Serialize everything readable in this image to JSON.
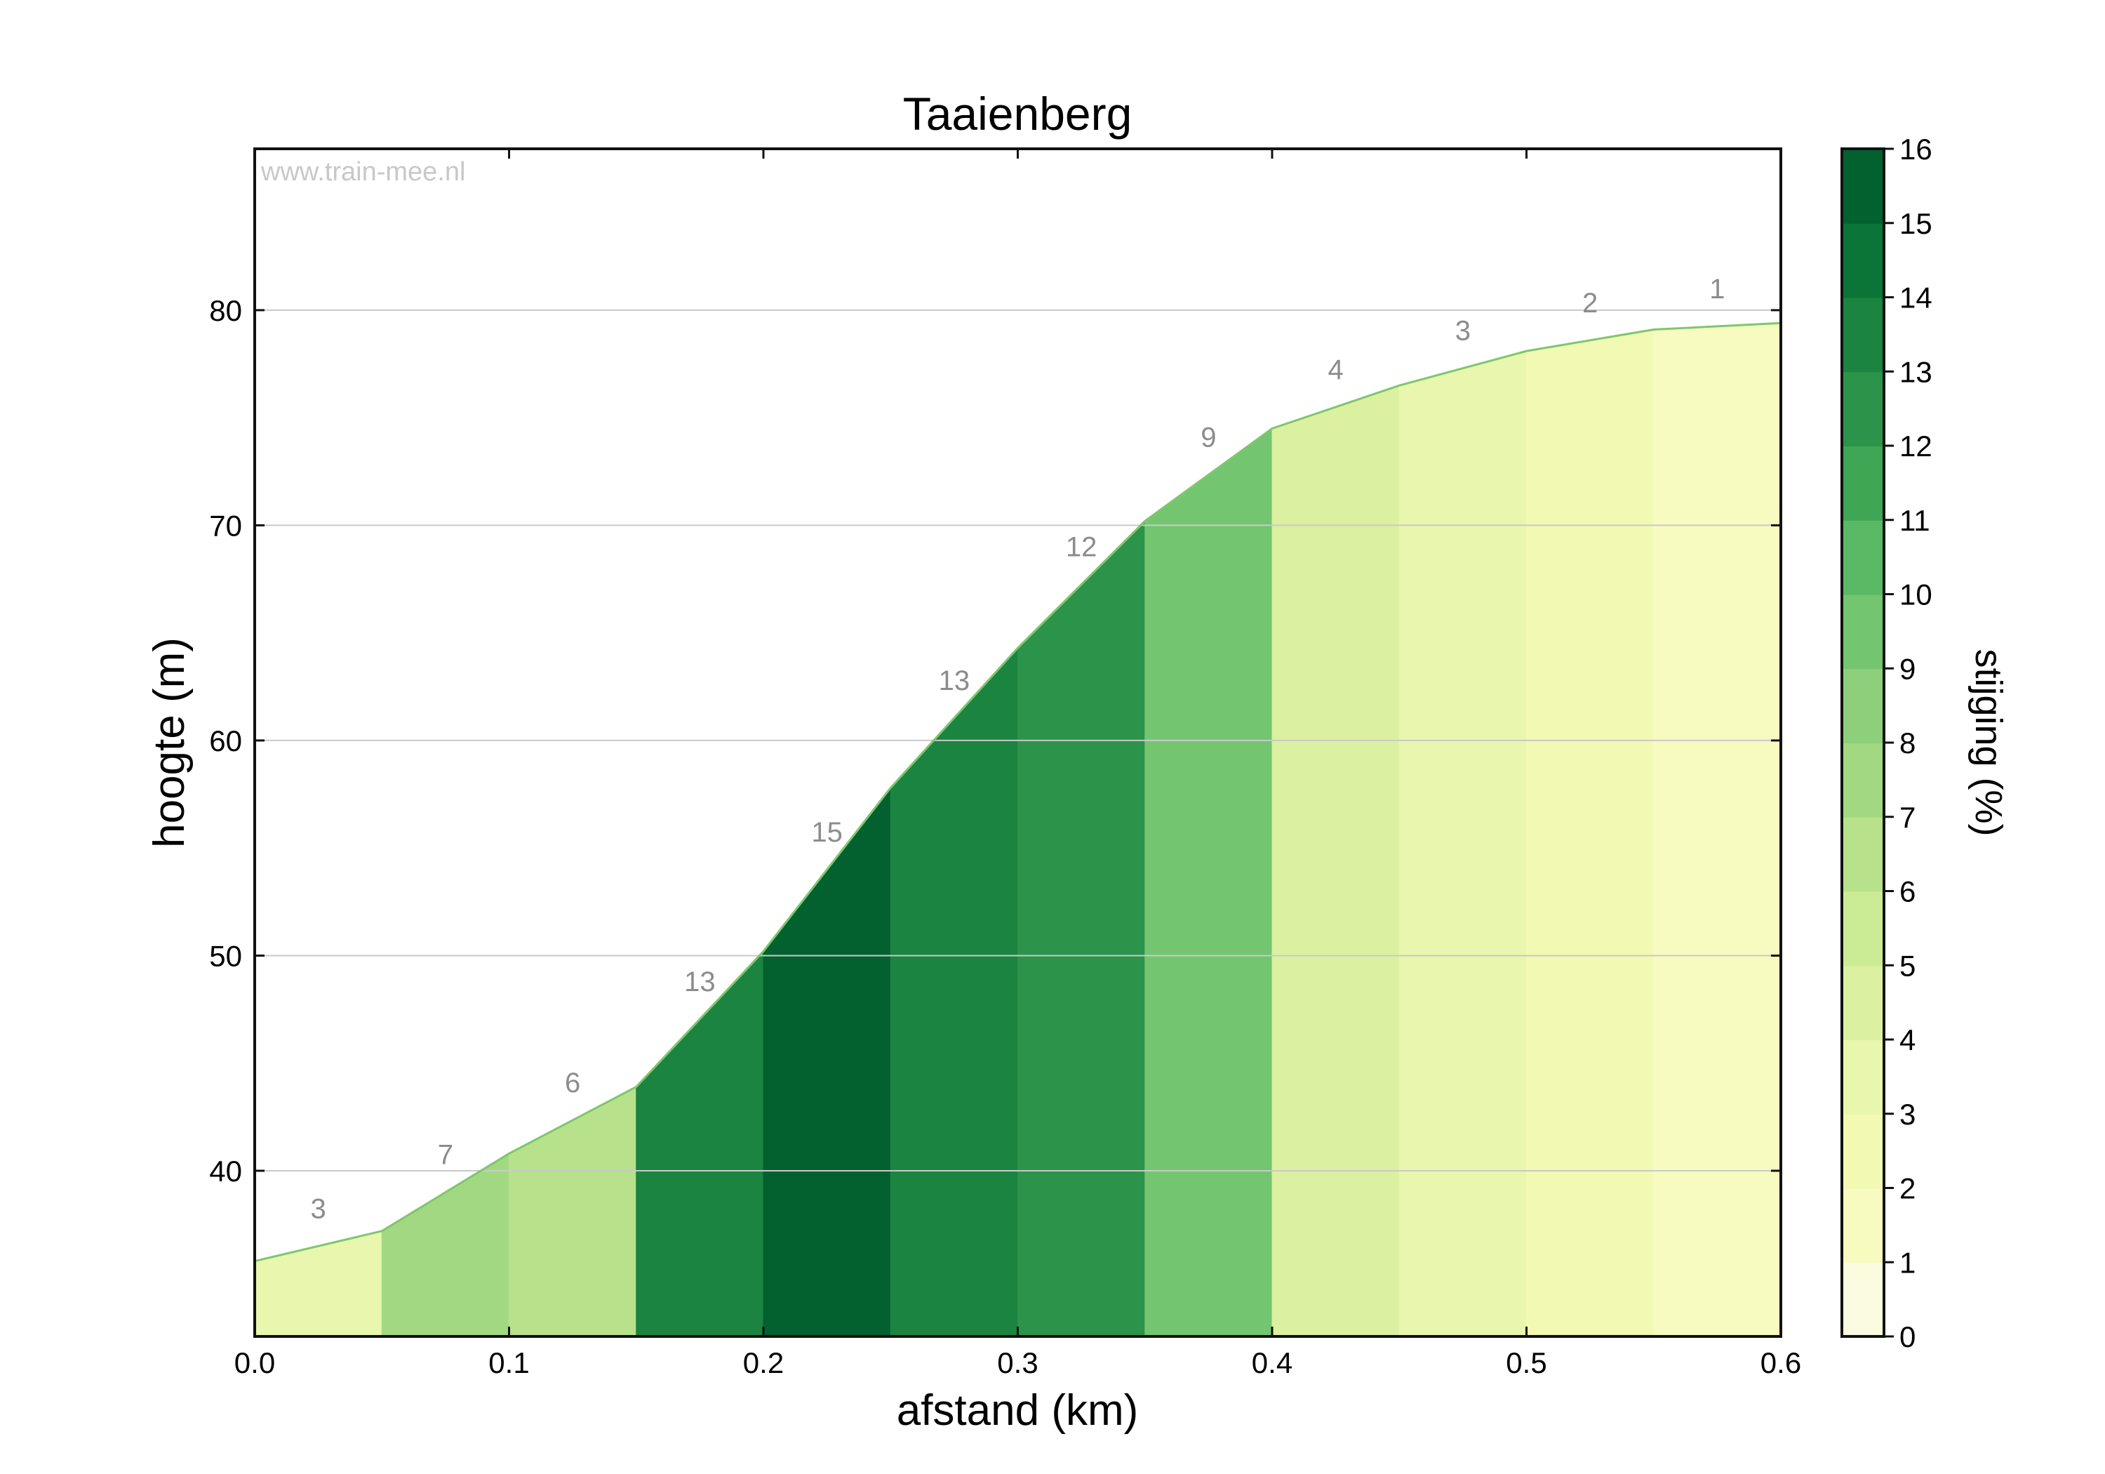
{
  "chart_data": {
    "type": "area",
    "title": "Taaienberg",
    "xlabel": "afstand (km)",
    "ylabel": "hoogte (m)",
    "watermark": "www.train-mee.nl",
    "xlim": [
      0.0,
      0.6
    ],
    "ylim": [
      32.3,
      87.5
    ],
    "x_ticks": [
      "0.0",
      "0.1",
      "0.2",
      "0.3",
      "0.4",
      "0.5",
      "0.6"
    ],
    "y_ticks": [
      "40",
      "50",
      "60",
      "70",
      "80"
    ],
    "grid": "horizontal",
    "x": [
      0.0,
      0.05,
      0.1,
      0.15,
      0.2,
      0.25,
      0.3,
      0.35,
      0.4,
      0.45,
      0.5,
      0.55,
      0.6
    ],
    "elevation": [
      35.8,
      37.2,
      40.8,
      43.9,
      50.2,
      57.8,
      64.3,
      70.2,
      74.5,
      76.5,
      78.1,
      79.1,
      79.4
    ],
    "segment_gradients": [
      3,
      7,
      6,
      13,
      15,
      13,
      12,
      9,
      4,
      3,
      2,
      1,
      1
    ],
    "segment_labels": [
      "3",
      "7",
      "6",
      "13",
      "15",
      "13",
      "12",
      "9",
      "4",
      "3",
      "2",
      "1",
      ""
    ],
    "colorbar": {
      "label": "stijging (%)",
      "ticks": [
        "0",
        "1",
        "2",
        "3",
        "4",
        "5",
        "6",
        "7",
        "8",
        "9",
        "10",
        "11",
        "12",
        "13",
        "14",
        "15",
        "16"
      ],
      "colors": [
        "#fbfbdf",
        "#f7fbbf",
        "#f2f9b3",
        "#e9f6ad",
        "#dbf0a1",
        "#cbeb95",
        "#b7e28b",
        "#a2d882",
        "#8dcf7a",
        "#73c570",
        "#5ab965",
        "#3fa655",
        "#2c934a",
        "#1a8440",
        "#0a7537",
        "#03612f",
        "#014b27"
      ]
    },
    "colors": {
      "line": "#7fc66e",
      "grid": "#c9c9c9",
      "segment_label": "#8c8c8c",
      "watermark": "#c8c8c8"
    }
  }
}
